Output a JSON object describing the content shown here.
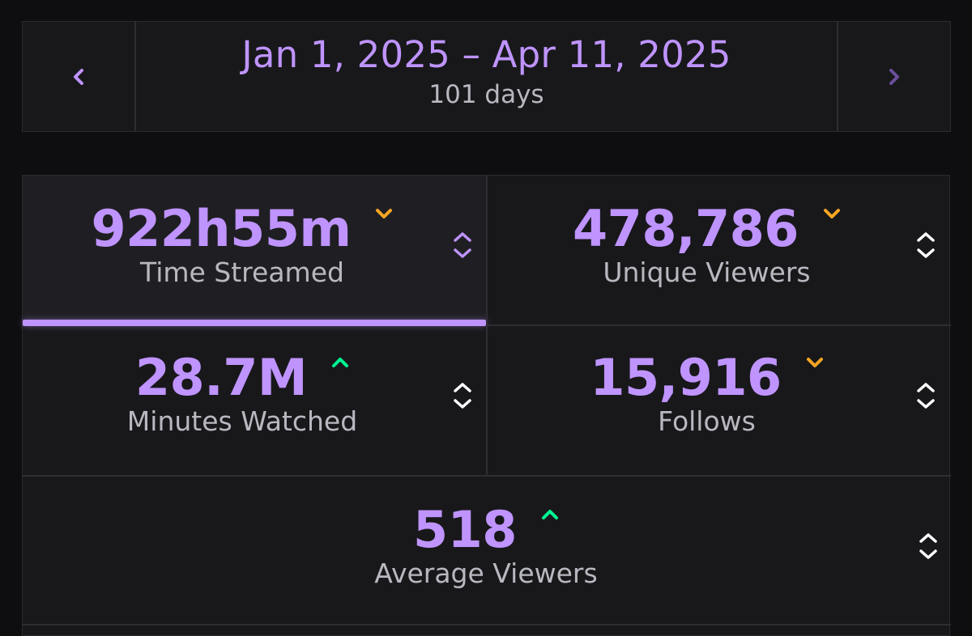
{
  "date_nav": {
    "range": "Jan 1, 2025 – Apr 11, 2025",
    "days": "101 days",
    "prev_icon": "chevron-left-icon",
    "next_icon": "chevron-right-icon"
  },
  "colors": {
    "accent": "#bf94ff",
    "down": "#f5a623",
    "up": "#00f593",
    "label": "#b8b8c0",
    "panel": "#18181b",
    "background": "#0e0e10"
  },
  "stats": [
    {
      "id": "time-streamed",
      "value": "922h55m",
      "label": "Time Streamed",
      "trend": "down",
      "selected": true
    },
    {
      "id": "unique-viewers",
      "value": "478,786",
      "label": "Unique Viewers",
      "trend": "down",
      "selected": false
    },
    {
      "id": "minutes-watched",
      "value": "28.7M",
      "label": "Minutes Watched",
      "trend": "up",
      "selected": false
    },
    {
      "id": "follows",
      "value": "15,916",
      "label": "Follows",
      "trend": "down",
      "selected": false
    },
    {
      "id": "average-viewers",
      "value": "518",
      "label": "Average Viewers",
      "trend": "up",
      "selected": false
    }
  ]
}
